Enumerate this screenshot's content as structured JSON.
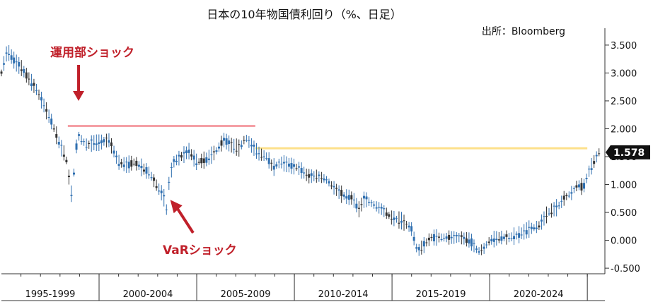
{
  "chart_data": {
    "type": "candlestick",
    "title": "日本の10年物国債利回り（%、日足）",
    "source": "出所：Bloomberg",
    "ylim": [
      -0.6,
      3.6
    ],
    "y_ticks": [
      "3.500",
      "3.000",
      "2.500",
      "2.000",
      "1.500",
      "1.000",
      "0.500",
      "0.000",
      "-0.500"
    ],
    "y_tick_values": [
      3.5,
      3.0,
      2.5,
      2.0,
      1.5,
      1.0,
      0.5,
      0.0,
      -0.5
    ],
    "x_period_labels": [
      "1995-1999",
      "2000-2004",
      "2005-2009",
      "2010-2014",
      "2015-2019",
      "2020-2024"
    ],
    "xlim": [
      1995.0,
      2025.9
    ],
    "last_value": 1.578,
    "last_value_label": "1.578",
    "series": [
      {
        "x": [
          1995.0,
          1995.3,
          1995.7,
          1996.0,
          1996.4,
          1996.8,
          1997.2,
          1997.6,
          1998.0,
          1998.3,
          1998.6,
          1998.9,
          1999.1,
          1999.4,
          1999.7,
          2000.0,
          2000.5,
          2001.0,
          2001.4,
          2001.8,
          2002.2,
          2002.6,
          2003.0,
          2003.3,
          2003.45,
          2003.6,
          2003.8,
          2004.2,
          2004.6,
          2005.0,
          2005.5,
          2006.0,
          2006.4,
          2006.8,
          2007.2,
          2007.5,
          2007.8,
          2008.2,
          2008.6,
          2008.9,
          2009.3,
          2009.7,
          2010.2,
          2010.7,
          2011.2,
          2011.6,
          2012.0,
          2012.5,
          2013.0,
          2013.3,
          2013.6,
          2014.0,
          2014.5,
          2015.0,
          2015.5,
          2016.0,
          2016.3,
          2016.6,
          2017.0,
          2017.5,
          2018.0,
          2018.5,
          2019.0,
          2019.4,
          2019.7,
          2020.0,
          2020.5,
          2021.0,
          2021.5,
          2022.0,
          2022.5,
          2023.0,
          2023.5,
          2023.8,
          2024.2,
          2024.5,
          2024.8,
          2025.1,
          2025.4,
          2025.6
        ],
        "y": [
          3.0,
          3.4,
          3.2,
          3.1,
          2.9,
          2.7,
          2.4,
          2.1,
          1.7,
          1.5,
          0.8,
          1.9,
          1.8,
          1.7,
          1.75,
          1.75,
          1.8,
          1.4,
          1.35,
          1.4,
          1.3,
          1.2,
          0.95,
          0.8,
          0.55,
          1.1,
          1.4,
          1.5,
          1.6,
          1.4,
          1.45,
          1.6,
          1.8,
          1.7,
          1.65,
          1.85,
          1.7,
          1.55,
          1.5,
          1.3,
          1.4,
          1.35,
          1.3,
          1.15,
          1.15,
          1.1,
          0.95,
          0.8,
          0.75,
          0.55,
          0.75,
          0.65,
          0.55,
          0.4,
          0.35,
          0.2,
          -0.2,
          -0.1,
          0.05,
          0.05,
          0.05,
          0.05,
          0.0,
          -0.2,
          -0.15,
          0.0,
          0.05,
          0.05,
          0.1,
          0.2,
          0.25,
          0.5,
          0.6,
          0.75,
          0.85,
          1.0,
          0.95,
          1.25,
          1.45,
          1.578
        ]
      }
    ],
    "reference_lines": [
      {
        "name": "pink",
        "y": 2.05,
        "x_start": 1998.4,
        "x_end": 2008.0,
        "color": "#f5a0a6"
      },
      {
        "name": "yellow",
        "y": 1.65,
        "x_start": 2008.0,
        "x_end": 2025.0,
        "color": "#fde08a"
      }
    ],
    "annotations": [
      {
        "label": "運用部ショック",
        "arrow_to_x": 1998.95,
        "arrow_to_y": 2.5,
        "color": "#c0202a"
      },
      {
        "label": "VaRショック",
        "arrow_to_x": 2003.5,
        "arrow_to_y": 0.7,
        "color": "#c0202a"
      }
    ],
    "colors": {
      "candle": "#2f6fb0",
      "candle_dark": "#333333",
      "axis": "#333333",
      "grid": "#bfbfbf",
      "last_box": "#111111"
    }
  }
}
